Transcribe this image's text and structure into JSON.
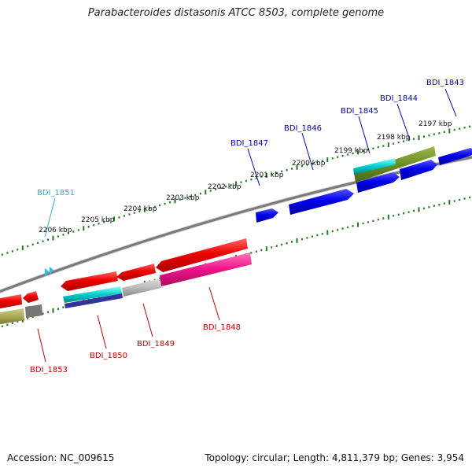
{
  "title": "Parabacteroides distasonis ATCC 8503, complete genome",
  "footer": {
    "accession": "Accession: NC_009615",
    "summary": "Topology: circular; Length: 4,811,379 bp; Genes: 3,954"
  },
  "colors": {
    "backbone": "#808080",
    "tick": "#1f7a1f",
    "forward_label": "#0000cc",
    "reverse_label": "#cc0000",
    "highlight_label": "#33aadd",
    "red_gene": "#ee0000",
    "blue_gene": "#0000ee",
    "olive_gene": "#6b8e23",
    "cyan_gene": "#00cccc",
    "magenta_gene": "#ee1188",
    "gray_gene": "#bbbbbb",
    "navy_gene": "#333399",
    "khaki_gene": "#aaaa55"
  },
  "kbp_labels": [
    "2197 kbp",
    "2198 kbp",
    "2199 kbp",
    "2200 kbp",
    "2201 kbp",
    "2202 kbp",
    "2203 kbp",
    "2204 kbp",
    "2205 kbp",
    "2206 kbp"
  ],
  "gene_labels": [
    {
      "text": "BDI_1843",
      "color": "#0000cc"
    },
    {
      "text": "BDI_1844",
      "color": "#0000cc"
    },
    {
      "text": "BDI_1845",
      "color": "#0000cc"
    },
    {
      "text": "BDI_1846",
      "color": "#0000cc"
    },
    {
      "text": "BDI_1847",
      "color": "#0000cc"
    },
    {
      "text": "BDI_1851",
      "color": "#33aadd"
    },
    {
      "text": "BDI_1848",
      "color": "#cc0000"
    },
    {
      "text": "BDI_1849",
      "color": "#cc0000"
    },
    {
      "text": "BDI_1850",
      "color": "#cc0000"
    },
    {
      "text": "BDI_1853",
      "color": "#cc0000"
    }
  ]
}
